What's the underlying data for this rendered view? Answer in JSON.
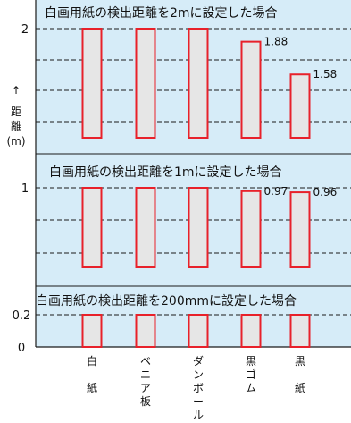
{
  "chart_data": {
    "type": "bar",
    "categories": [
      {
        "lines": [
          "白",
          "紙"
        ]
      },
      {
        "lines": [
          "ベ",
          "ニ",
          "ア",
          "板"
        ]
      },
      {
        "lines": [
          "ダ",
          "ン",
          "ボ",
          "ー",
          "ル"
        ]
      },
      {
        "lines": [
          "黒",
          "ゴ",
          "ム"
        ]
      },
      {
        "lines": [
          "黒",
          "紙"
        ]
      }
    ],
    "ylabel": [
      "↑",
      "距",
      "離",
      "(m)"
    ],
    "yticks": [
      "2",
      "1",
      "0.2",
      "0"
    ],
    "panels": [
      {
        "title": "白画用紙の検出距離を2mに設定した場合",
        "setting_m": 2,
        "ylim": [
          1,
          2
        ],
        "values": [
          2,
          2,
          2,
          1.88,
          1.58
        ],
        "data_labels": [
          "",
          "",
          "",
          "1.88",
          "1.58"
        ]
      },
      {
        "title": "白画用紙の検出距離を1mに設定した場合",
        "setting_m": 1,
        "ylim": [
          0.3,
          1
        ],
        "values": [
          1,
          1,
          1,
          0.97,
          0.96
        ],
        "data_labels": [
          "",
          "",
          "",
          "0.97",
          "0.96"
        ]
      },
      {
        "title": "白画用紙の検出距離を200mmに設定した場合",
        "setting_m": 0.2,
        "ylim": [
          0,
          0.2
        ],
        "values": [
          0.2,
          0.2,
          0.2,
          0.2,
          0.2
        ],
        "data_labels": [
          "",
          "",
          "",
          "",
          ""
        ]
      }
    ],
    "colors": {
      "bar_border": "#e8212a",
      "bar_fill": "#e6e6e6",
      "panel_bg": "#d6ecf8"
    }
  }
}
